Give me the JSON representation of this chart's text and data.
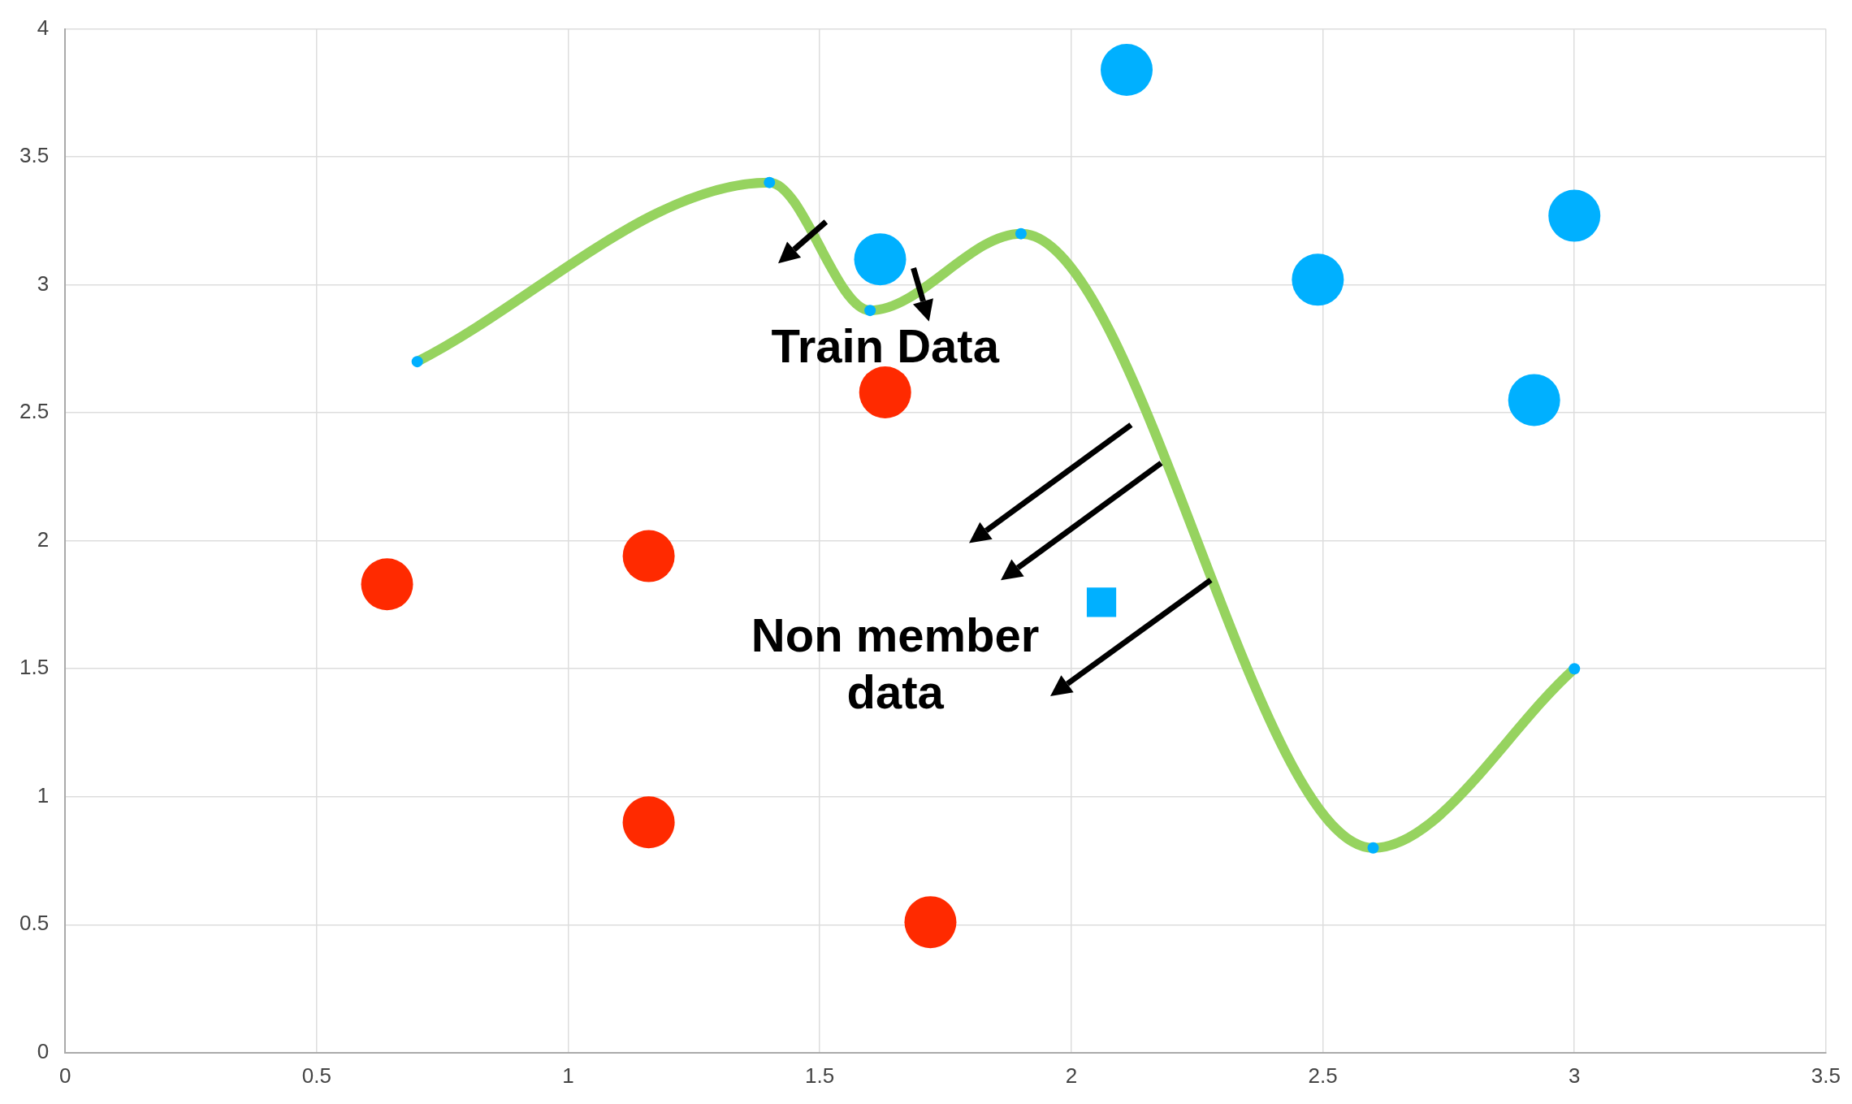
{
  "chart_data": {
    "type": "scatter",
    "xlim": [
      0,
      3.5
    ],
    "xticks": [
      0,
      0.5,
      1,
      1.5,
      2,
      2.5,
      3,
      3.5
    ],
    "ylim": [
      0,
      4
    ],
    "yticks": [
      0,
      0.5,
      1,
      1.5,
      2,
      2.5,
      3,
      3.5,
      4
    ],
    "grid": true,
    "legend": false,
    "annotations": [
      "Train Data",
      "Non member data"
    ],
    "series": [
      {
        "type": "line",
        "color": "#96d35f",
        "marker": "circle",
        "colors": [
          "#00b0ff",
          "#00b0ff",
          "#00b0ff",
          "#00b0ff",
          "#00b0ff",
          "#00b0ff"
        ],
        "x": [
          0.7,
          1.4,
          1.6,
          1.9,
          2.6,
          3.0
        ],
        "values": [
          2.7,
          3.4,
          2.9,
          3.2,
          0.8,
          1.5
        ]
      },
      {
        "type": "scatter",
        "color": "#ff2a00",
        "marker": "circle",
        "x": [
          0.64,
          1.16,
          1.63,
          1.16,
          1.72
        ],
        "values": [
          1.83,
          1.94,
          2.58,
          0.9,
          0.51
        ]
      },
      {
        "type": "scatter",
        "color": "#00b0ff",
        "marker": "circle",
        "x": [
          2.11,
          1.62,
          2.49,
          3.0,
          2.92
        ],
        "values": [
          3.84,
          3.1,
          3.02,
          3.27,
          2.55
        ]
      },
      {
        "type": "scatter",
        "color": "#00b0ff",
        "marker": "square",
        "x": [
          2.06
        ],
        "values": [
          1.76
        ]
      }
    ]
  }
}
